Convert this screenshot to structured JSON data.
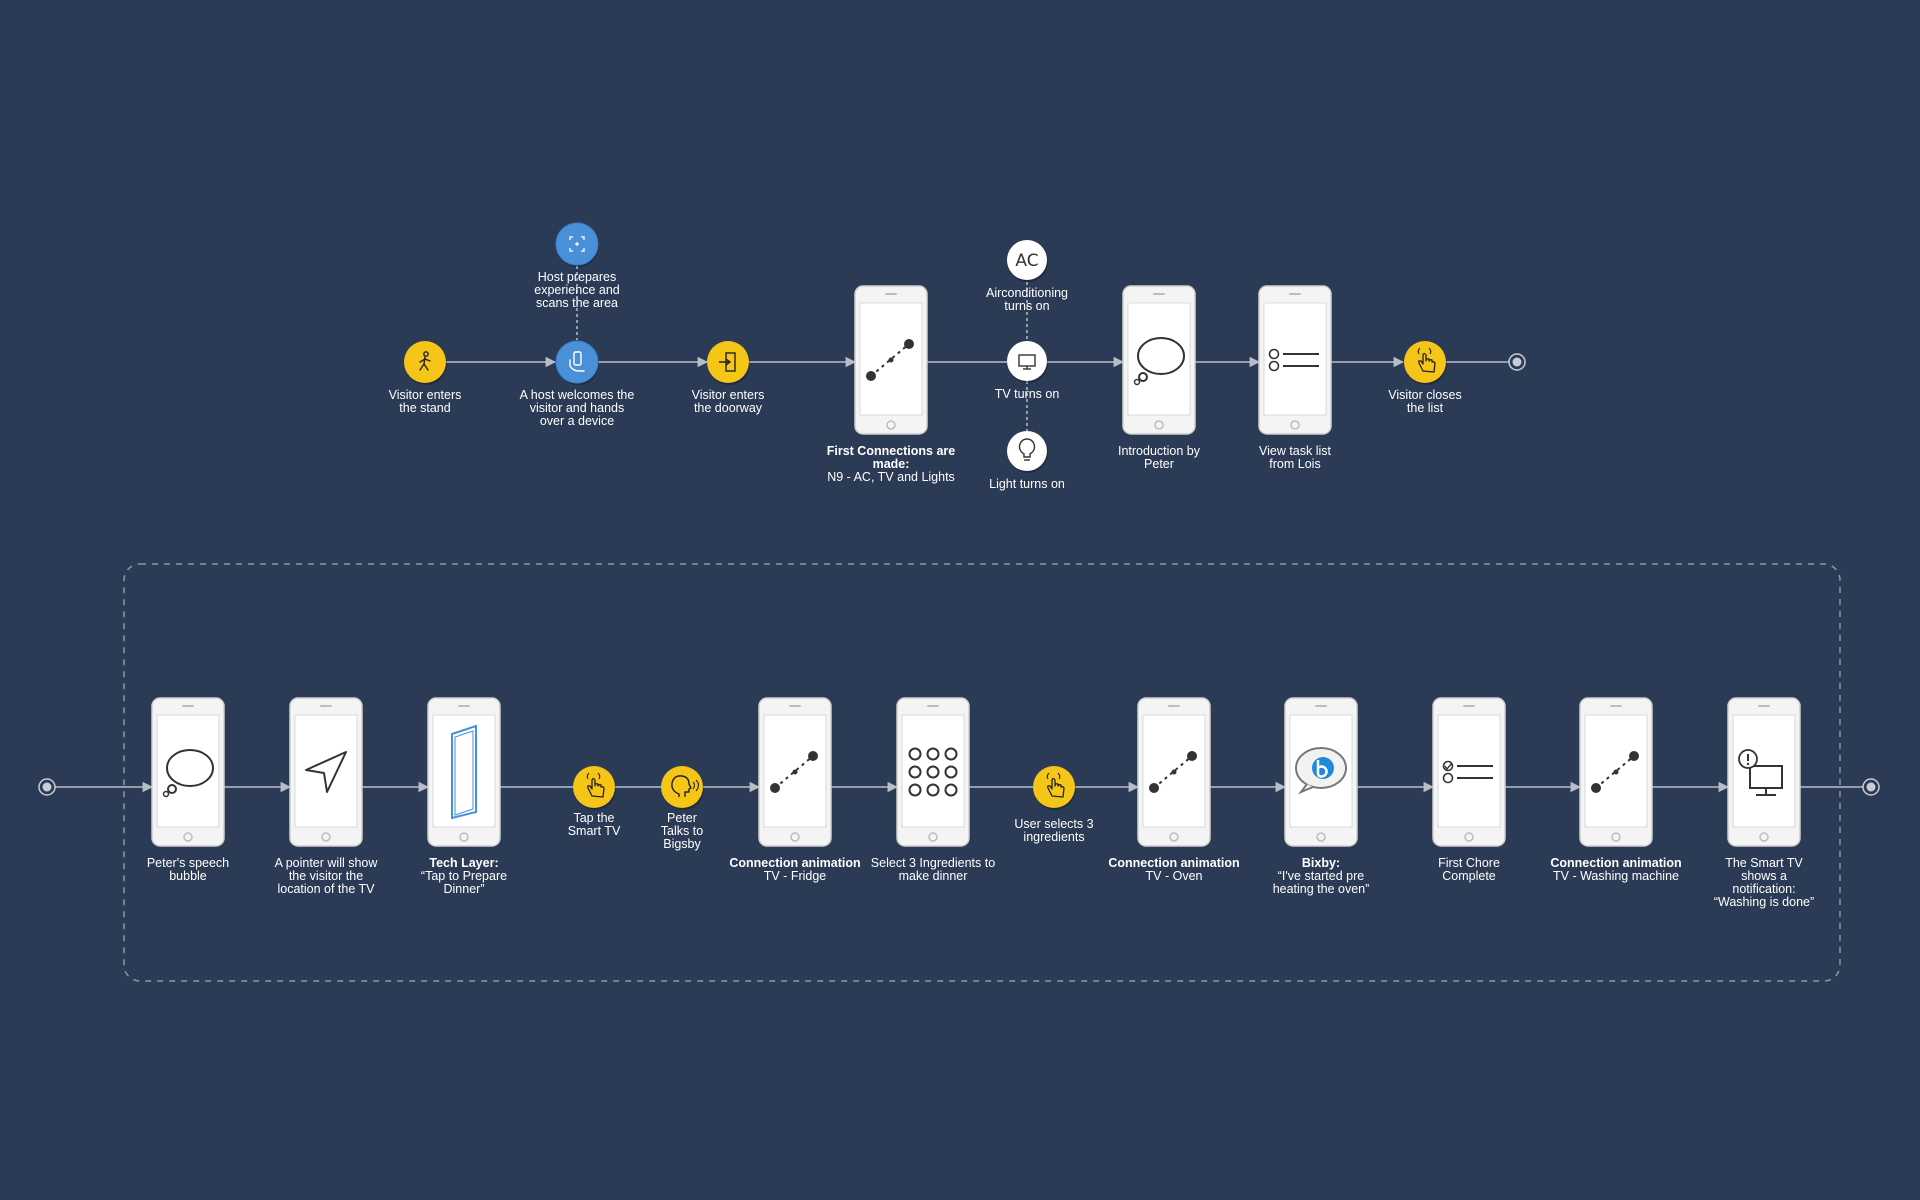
{
  "colors": {
    "background": "#2b3a55",
    "visitor_node": "#f5c518",
    "host_node": "#4a90d9",
    "system_node": "#ffffff",
    "connector": "#b8bec8",
    "phone_frame": "#e6e6e6"
  },
  "row1": {
    "nodes": [
      {
        "id": "visitor-enters-stand",
        "kind": "visitor",
        "icon": "walking-person-icon",
        "text": "Visitor enters\nthe stand"
      },
      {
        "id": "host-prepares",
        "kind": "host",
        "icon": "scan-area-icon",
        "text": "Host prepares\nexperience and\nscans the area"
      },
      {
        "id": "host-welcomes",
        "kind": "host",
        "icon": "hand-holding-device-icon",
        "text": "A host welcomes the\nvisitor and hands\nover a device"
      },
      {
        "id": "visitor-enters-doorway",
        "kind": "visitor",
        "icon": "door-enter-icon",
        "text": "Visitor enters\nthe doorway"
      },
      {
        "id": "first-connections",
        "kind": "phone",
        "icon": "connection-line-icon",
        "title": "First Connections are made:",
        "text": "N9 - AC, TV and Lights"
      },
      {
        "id": "ac-on",
        "kind": "system",
        "icon": "ac-icon",
        "icon_text": "AC",
        "text": "Airconditioning\nturns on"
      },
      {
        "id": "tv-on",
        "kind": "system",
        "icon": "tv-icon",
        "text": "TV turns on"
      },
      {
        "id": "light-on",
        "kind": "system",
        "icon": "light-bulb-icon",
        "text": "Light turns on"
      },
      {
        "id": "intro-peter",
        "kind": "phone",
        "icon": "speech-bubble-icon",
        "text": "Introduction by\nPeter"
      },
      {
        "id": "task-list",
        "kind": "phone",
        "icon": "task-list-icon",
        "text": "View task list\nfrom Lois"
      },
      {
        "id": "visitor-closes",
        "kind": "visitor",
        "icon": "tap-hand-icon",
        "text": "Visitor closes\nthe list"
      },
      {
        "id": "row1-end",
        "kind": "terminal",
        "icon": "end-dot-icon",
        "text": ""
      }
    ]
  },
  "row2": {
    "nodes": [
      {
        "id": "row2-start",
        "kind": "terminal",
        "icon": "start-dot-icon",
        "text": ""
      },
      {
        "id": "speech-bubble",
        "kind": "phone",
        "icon": "speech-bubble-icon",
        "text": "Peter's speech\nbubble"
      },
      {
        "id": "pointer",
        "kind": "phone",
        "icon": "pointer-arrow-icon",
        "text": "A pointer will show\nthe visitor the\nlocation of the TV"
      },
      {
        "id": "tech-layer",
        "kind": "phone",
        "icon": "tech-layer-icon",
        "title": "Tech Layer:",
        "text": "“Tap to Prepare\nDinner”"
      },
      {
        "id": "tap-smart-tv",
        "kind": "visitor",
        "icon": "tap-hand-icon",
        "text": "Tap the\nSmart TV"
      },
      {
        "id": "peter-talks",
        "kind": "visitor",
        "icon": "talking-head-icon",
        "text": "Peter\nTalks to\nBigsby"
      },
      {
        "id": "conn-fridge",
        "kind": "phone",
        "icon": "connection-line-icon",
        "title": "Connection animation",
        "text": "TV - Fridge"
      },
      {
        "id": "select-ingredients",
        "kind": "phone",
        "icon": "grid-dots-icon",
        "text": "Select 3 Ingredients to\nmake dinner"
      },
      {
        "id": "user-selects",
        "kind": "visitor",
        "icon": "tap-hand-icon",
        "text": "User selects 3\ningredients"
      },
      {
        "id": "conn-oven",
        "kind": "phone",
        "icon": "connection-line-icon",
        "title": "Connection animation",
        "text": "TV - Oven"
      },
      {
        "id": "bixby",
        "kind": "phone",
        "icon": "bixby-bubble-icon",
        "title": "Bixby:",
        "text": "“I've started pre\nheating the oven”"
      },
      {
        "id": "first-chore",
        "kind": "phone",
        "icon": "checked-list-icon",
        "text": "First Chore\nComplete"
      },
      {
        "id": "conn-washer",
        "kind": "phone",
        "icon": "connection-line-icon",
        "title": "Connection animation",
        "text": "TV - Washing machine"
      },
      {
        "id": "smart-tv-notify",
        "kind": "phone",
        "icon": "tv-alert-icon",
        "text": "The Smart TV\nshows a\nnotification:\n“Washing is done”"
      },
      {
        "id": "row2-end",
        "kind": "terminal",
        "icon": "end-dot-icon",
        "text": ""
      }
    ]
  }
}
